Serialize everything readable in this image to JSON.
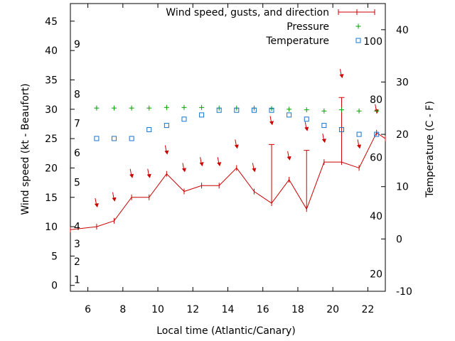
{
  "chart_data": {
    "type": "line",
    "xlabel": "Local time (Atlantic/Canary)",
    "ylabel": "Wind speed (kt - Beaufort)",
    "y2label": "Temperature (C - F)",
    "xlim": [
      5,
      23
    ],
    "ylim": [
      -1,
      48
    ],
    "y2lim": [
      -10,
      45
    ],
    "x_ticks": [
      6,
      8,
      10,
      12,
      14,
      16,
      18,
      20,
      22
    ],
    "y_ticks": [
      0,
      5,
      10,
      15,
      20,
      25,
      30,
      35,
      40,
      45
    ],
    "y2_ticks": [
      -10,
      0,
      10,
      20,
      30,
      40
    ],
    "beaufort_labels": [
      {
        "text": "1",
        "y": 1
      },
      {
        "text": "2",
        "y": 4.1
      },
      {
        "text": "3",
        "y": 7.1
      },
      {
        "text": "4",
        "y": 10.1
      },
      {
        "text": "5",
        "y": 17.6
      },
      {
        "text": "6",
        "y": 22.6
      },
      {
        "text": "7",
        "y": 27.6
      },
      {
        "text": "8",
        "y": 32.6
      },
      {
        "text": "9",
        "y": 41.1
      }
    ],
    "fahrenheit_labels": [
      {
        "text": "20",
        "y2": -6.7
      },
      {
        "text": "40",
        "y2": 4.4
      },
      {
        "text": "60",
        "y2": 15.6
      },
      {
        "text": "80",
        "y2": 26.7
      },
      {
        "text": "100",
        "y2": 37.8
      }
    ],
    "legend": {
      "placement": "top-right",
      "entries": [
        "Wind speed, gusts, and direction",
        "Pressure",
        "Temperature"
      ]
    },
    "series": [
      {
        "name": "Wind speed, gusts, and direction",
        "color": "#cc0000",
        "x": [
          5.0,
          6.5,
          7.5,
          8.5,
          9.5,
          10.5,
          11.5,
          12.5,
          13.5,
          14.5,
          15.5,
          16.5,
          17.5,
          18.5,
          19.5,
          20.5,
          21.5,
          22.5,
          23.0
        ],
        "y": [
          9.5,
          10,
          11,
          15,
          15,
          19,
          16,
          17,
          17,
          20,
          16,
          14,
          18,
          13,
          21,
          21,
          20,
          26,
          25
        ],
        "gusts": [
          null,
          null,
          null,
          null,
          null,
          null,
          null,
          null,
          null,
          null,
          null,
          24,
          null,
          23,
          null,
          32,
          null,
          null,
          null
        ]
      },
      {
        "name": "Pressure",
        "color": "#00a000",
        "x": [
          6.5,
          7.5,
          8.5,
          9.5,
          10.5,
          11.5,
          12.5,
          13.5,
          14.5,
          15.5,
          16.5,
          17.5,
          18.5,
          19.5,
          20.5,
          21.5,
          22.5
        ],
        "y": [
          30.2,
          30.2,
          30.2,
          30.2,
          30.3,
          30.3,
          30.3,
          30.2,
          30.2,
          30.2,
          30.1,
          30.0,
          29.9,
          29.7,
          29.9,
          29.7,
          29.7
        ]
      },
      {
        "name": "Temperature",
        "color": "#1874cd",
        "x": [
          6.5,
          7.5,
          8.5,
          9.5,
          10.5,
          11.5,
          12.5,
          13.5,
          14.5,
          15.5,
          16.5,
          17.5,
          18.5,
          19.5,
          20.5,
          21.5,
          22.5
        ],
        "y2": [
          19.2,
          19.2,
          19.2,
          20.9,
          21.7,
          22.9,
          23.7,
          24.6,
          24.6,
          24.6,
          24.6,
          23.7,
          22.9,
          21.7,
          20.9,
          20.0,
          20.0
        ]
      }
    ],
    "direction_arrows": {
      "color": "#cc0000",
      "x": [
        6.5,
        7.5,
        8.5,
        9.5,
        10.5,
        11.5,
        12.5,
        13.5,
        14.5,
        15.5,
        16.5,
        17.5,
        18.5,
        19.5,
        20.5,
        21.5,
        22.5
      ],
      "y": [
        14,
        15,
        19,
        19,
        23,
        20,
        21,
        21,
        24,
        20,
        28,
        22,
        27,
        25,
        36,
        24,
        30
      ]
    }
  }
}
